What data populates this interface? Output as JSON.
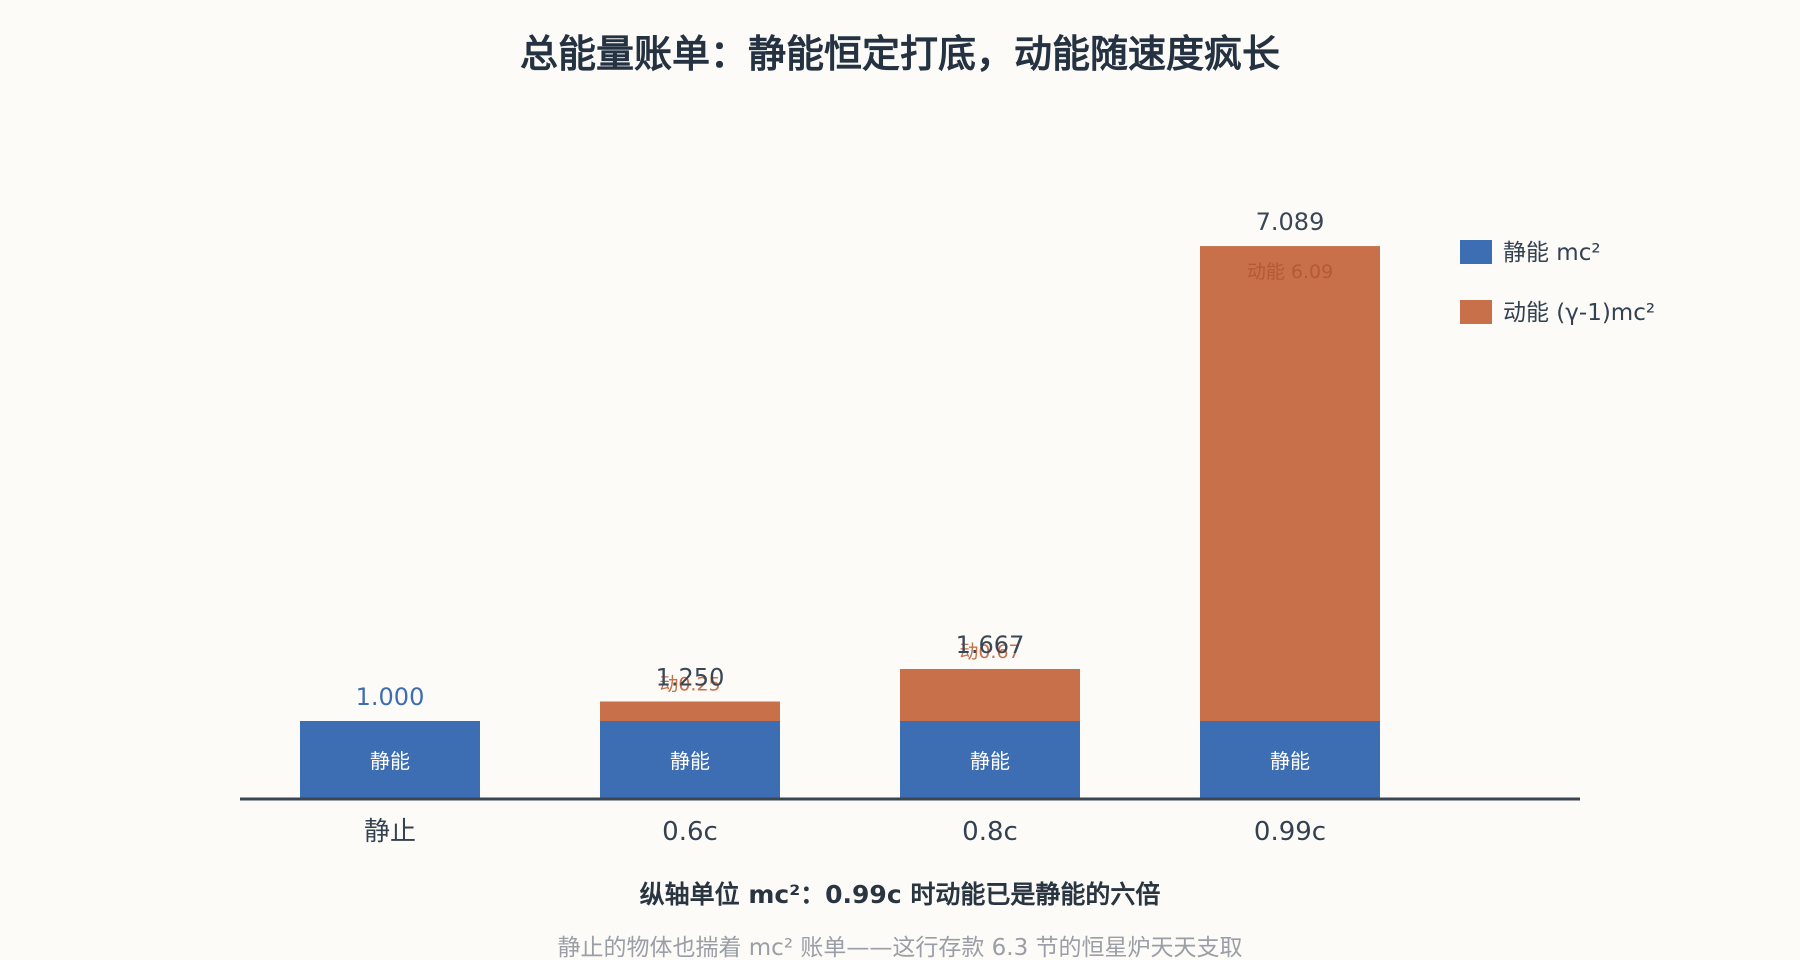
{
  "colors": {
    "rest": "#3d6db2",
    "kinetic": "#c8704a",
    "axis": "#3a4654",
    "background": "#fcfbf8"
  },
  "chart_data": {
    "type": "bar",
    "stacked": true,
    "title": "总能量账单：静能恒定打底，动能随速度疯长",
    "categories": [
      "静止",
      "0.6c",
      "0.8c",
      "0.99c"
    ],
    "series": [
      {
        "name": "静能 mc²",
        "values": [
          1.0,
          1.0,
          1.0,
          1.0
        ],
        "color": "#3d6db2"
      },
      {
        "name": "动能 (γ-1)mc²",
        "values": [
          0.0,
          0.25,
          0.667,
          6.089
        ],
        "color": "#c8704a"
      }
    ],
    "total_labels": [
      "1.000",
      "1.250",
      "1.667",
      "7.089"
    ],
    "rest_inner_labels": [
      "静能",
      "静能",
      "静能",
      "静能"
    ],
    "kinetic_labels": [
      "",
      "动0.25",
      "动0.67",
      "动能 6.09"
    ],
    "ylim": [
      0,
      7.5
    ],
    "grid": false,
    "legend_position": "top-right",
    "xlabel": "纵轴单位 mc²：0.99c 时动能已是静能的六倍",
    "ylabel": ""
  },
  "footnote": "静止的物体也揣着 mc² 账单——这行存款 6.3 节的恒星炉天天支取"
}
